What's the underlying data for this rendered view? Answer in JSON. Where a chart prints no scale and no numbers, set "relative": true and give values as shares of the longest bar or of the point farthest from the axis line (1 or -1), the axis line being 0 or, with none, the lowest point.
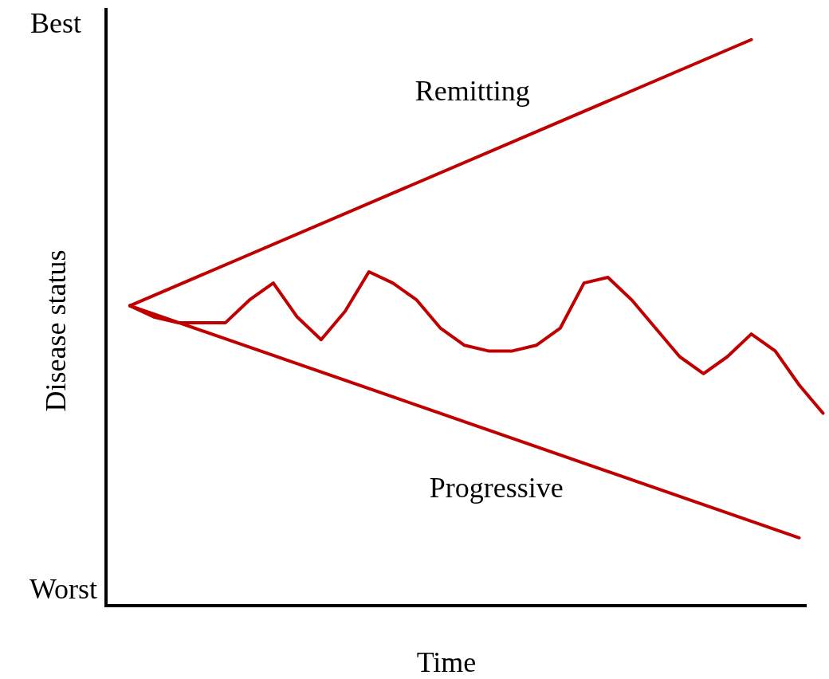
{
  "chart_data": {
    "type": "line",
    "relative": true,
    "ylabel": "Disease status",
    "xlabel": "Time",
    "annotations": [
      "Best",
      "Worst"
    ],
    "marker": "none",
    "line_style": "solid",
    "legend": false,
    "grid": false,
    "categories": [
      null,
      null,
      null,
      null,
      null,
      null,
      null,
      null,
      null,
      null,
      null,
      null,
      null,
      null,
      null,
      null,
      null,
      null,
      null,
      null,
      null,
      null,
      null,
      null,
      null,
      null,
      null,
      null,
      null,
      null
    ],
    "series": [
      {
        "name": "Remitting",
        "color": "#c00000",
        "values": [
          0.53,
          null,
          null,
          null,
          null,
          null,
          null,
          null,
          null,
          null,
          null,
          null,
          null,
          null,
          null,
          null,
          null,
          null,
          null,
          null,
          null,
          null,
          null,
          null,
          null,
          null,
          1,
          null,
          null,
          null
        ]
      },
      {
        "name": "Progressive",
        "color": "#c00000",
        "values": [
          0.53,
          null,
          null,
          null,
          null,
          null,
          null,
          null,
          null,
          null,
          null,
          null,
          null,
          null,
          null,
          null,
          null,
          null,
          null,
          null,
          null,
          null,
          null,
          null,
          null,
          null,
          null,
          null,
          0.12,
          null
        ]
      },
      {
        "color": "#c00000",
        "values": [
          0.53,
          0.51,
          0.5,
          0.5,
          0.5,
          0.54,
          0.57,
          0.51,
          0.47,
          0.52,
          0.59,
          0.57,
          0.54,
          0.49,
          0.46,
          0.45,
          0.45,
          0.46,
          0.49,
          0.57,
          0.58,
          0.54,
          0.49,
          0.44,
          0.41,
          0.44,
          0.48,
          0.45,
          0.39,
          0.34
        ]
      }
    ]
  }
}
